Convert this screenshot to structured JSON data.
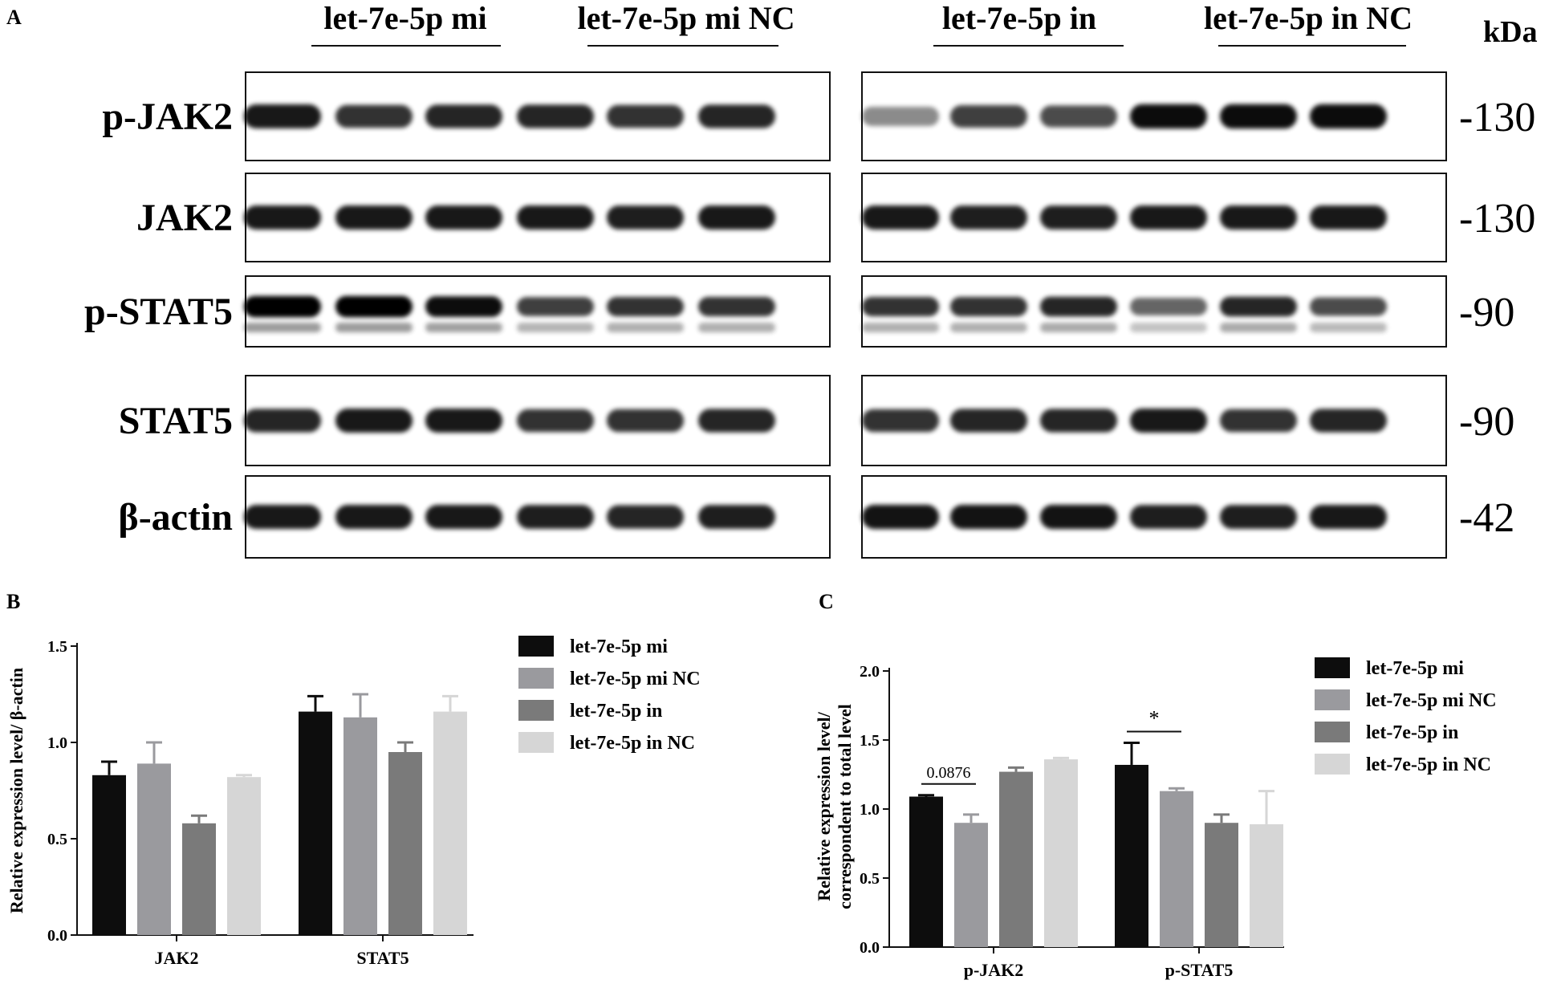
{
  "panel_labels": {
    "a": "A",
    "b": "B",
    "c": "C"
  },
  "blot": {
    "left_groups": [
      "let-7e-5p mi",
      "let-7e-5p mi NC"
    ],
    "right_groups": [
      "let-7e-5p in",
      "let-7e-5p in NC"
    ],
    "kda_header": "kDa",
    "rows": [
      {
        "protein": "p-JAK2",
        "kda": "-130"
      },
      {
        "protein": "JAK2",
        "kda": "-130"
      },
      {
        "protein": "p-STAT5",
        "kda": "-90"
      },
      {
        "protein": "STAT5",
        "kda": "-90"
      },
      {
        "protein": "β-actin",
        "kda": "-42"
      }
    ]
  },
  "colors": {
    "let-7e-5p mi": "#0d0d0d",
    "let-7e-5p mi NC": "#9a9a9e",
    "let-7e-5p in": "#7a7a7a",
    "let-7e-5p in NC": "#d6d6d6"
  },
  "chart_data": [
    {
      "type": "bar",
      "panel": "B",
      "categories": [
        "JAK2",
        "STAT5"
      ],
      "ylabel": "Relative expression level/ β-actin",
      "ylim": [
        0,
        1.5
      ],
      "yticks": [
        "0.0",
        "0.5",
        "1.0",
        "1.5"
      ],
      "legend_position": "top-right",
      "series": [
        {
          "name": "let-7e-5p mi",
          "values": [
            0.83,
            1.16
          ],
          "errors": [
            0.07,
            0.08
          ]
        },
        {
          "name": "let-7e-5p mi NC",
          "values": [
            0.89,
            1.13
          ],
          "errors": [
            0.11,
            0.12
          ]
        },
        {
          "name": "let-7e-5p in",
          "values": [
            0.58,
            0.95
          ],
          "errors": [
            0.04,
            0.05
          ]
        },
        {
          "name": "let-7e-5p in NC",
          "values": [
            0.82,
            1.16
          ],
          "errors": [
            0.01,
            0.08
          ]
        }
      ]
    },
    {
      "type": "bar",
      "panel": "C",
      "categories": [
        "p-JAK2",
        "p-STAT5"
      ],
      "ylabel": "Relative expression level/ correspondent to total level",
      "ylim": [
        0,
        2.0
      ],
      "yticks": [
        "0.0",
        "0.5",
        "1.0",
        "1.5",
        "2.0"
      ],
      "legend_position": "top-right",
      "series": [
        {
          "name": "let-7e-5p mi",
          "values": [
            1.09,
            1.32
          ],
          "errors": [
            0.01,
            0.16
          ]
        },
        {
          "name": "let-7e-5p mi NC",
          "values": [
            0.9,
            1.13
          ],
          "errors": [
            0.06,
            0.02
          ]
        },
        {
          "name": "let-7e-5p in",
          "values": [
            1.27,
            0.9
          ],
          "errors": [
            0.03,
            0.06
          ]
        },
        {
          "name": "let-7e-5p in NC",
          "values": [
            1.36,
            0.89
          ],
          "errors": [
            0.01,
            0.24
          ]
        }
      ],
      "annotations": [
        {
          "category": "p-JAK2",
          "between": [
            "let-7e-5p mi",
            "let-7e-5p mi NC"
          ],
          "text": "0.0876"
        },
        {
          "category": "p-STAT5",
          "between": [
            "let-7e-5p mi",
            "let-7e-5p mi NC"
          ],
          "text": "*"
        }
      ]
    }
  ]
}
